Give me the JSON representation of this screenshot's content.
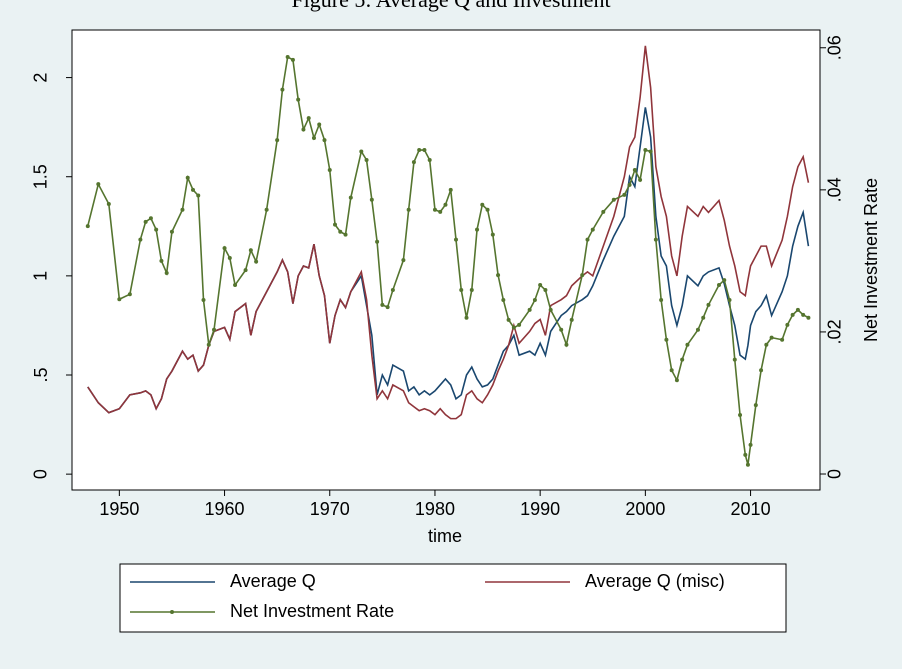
{
  "chart_data": {
    "type": "line",
    "title": "Figure 5: Average Q and Investment",
    "xlabel": "time",
    "y2label": "Net Investment Rate",
    "x": [
      1947,
      1948,
      1949,
      1950,
      1951,
      1952,
      1952.5,
      1953,
      1953.5,
      1954,
      1954.5,
      1955,
      1956,
      1956.5,
      1957,
      1957.5,
      1958,
      1958.5,
      1959,
      1960,
      1960.5,
      1961,
      1962,
      1962.5,
      1963,
      1964,
      1965,
      1965.5,
      1966,
      1966.5,
      1967,
      1967.5,
      1968,
      1968.5,
      1969,
      1969.5,
      1970,
      1970.5,
      1971,
      1971.5,
      1972,
      1973,
      1973.5,
      1974,
      1974.5,
      1975,
      1975.5,
      1976,
      1977,
      1977.5,
      1978,
      1978.5,
      1979,
      1979.5,
      1980,
      1980.5,
      1981,
      1981.5,
      1982,
      1982.5,
      1983,
      1983.5,
      1984,
      1984.5,
      1985,
      1985.5,
      1986,
      1986.5,
      1987,
      1987.5,
      1988,
      1989,
      1989.5,
      1990,
      1990.5,
      1991,
      1992,
      1992.5,
      1993,
      1994,
      1994.5,
      1995,
      1996,
      1997,
      1998,
      1998.5,
      1999,
      1999.5,
      2000,
      2000.5,
      2001,
      2001.5,
      2002,
      2002.5,
      2003,
      2003.5,
      2004,
      2005,
      2005.5,
      2006,
      2007,
      2007.5,
      2008,
      2008.5,
      2009,
      2009.5,
      2009.75,
      2010,
      2010.5,
      2011,
      2011.5,
      2012,
      2013,
      2013.5,
      2014,
      2014.5,
      2015,
      2015.5
    ],
    "series": [
      {
        "name": "Average Q",
        "color": "#1a476f",
        "values": [
          0.44,
          0.36,
          0.31,
          0.33,
          0.4,
          0.41,
          0.42,
          0.4,
          0.33,
          0.38,
          0.48,
          0.52,
          0.62,
          0.58,
          0.6,
          0.52,
          0.55,
          0.65,
          0.72,
          0.74,
          0.68,
          0.82,
          0.86,
          0.7,
          0.82,
          0.92,
          1.02,
          1.08,
          1.02,
          0.86,
          1.0,
          1.05,
          1.04,
          1.16,
          1.0,
          0.9,
          0.66,
          0.8,
          0.88,
          0.84,
          0.92,
          1.0,
          0.85,
          0.7,
          0.4,
          0.5,
          0.45,
          0.55,
          0.52,
          0.42,
          0.44,
          0.4,
          0.42,
          0.4,
          0.42,
          0.45,
          0.48,
          0.45,
          0.38,
          0.4,
          0.5,
          0.54,
          0.48,
          0.44,
          0.45,
          0.48,
          0.55,
          0.62,
          0.65,
          0.7,
          0.6,
          0.62,
          0.6,
          0.66,
          0.6,
          0.72,
          0.8,
          0.82,
          0.85,
          0.88,
          0.9,
          0.95,
          1.08,
          1.2,
          1.3,
          1.5,
          1.45,
          1.65,
          1.85,
          1.7,
          1.3,
          1.1,
          1.05,
          0.85,
          0.75,
          0.85,
          1.0,
          0.95,
          1.0,
          1.02,
          1.04,
          0.96,
          0.85,
          0.75,
          0.6,
          0.58,
          0.65,
          0.75,
          0.82,
          0.85,
          0.9,
          0.8,
          0.92,
          1.0,
          1.15,
          1.25,
          1.32,
          1.15
        ]
      },
      {
        "name": "Average Q (misc)",
        "color": "#90353b",
        "values": [
          0.44,
          0.36,
          0.31,
          0.33,
          0.4,
          0.41,
          0.42,
          0.4,
          0.33,
          0.38,
          0.48,
          0.52,
          0.62,
          0.58,
          0.6,
          0.52,
          0.55,
          0.65,
          0.72,
          0.74,
          0.68,
          0.82,
          0.86,
          0.7,
          0.82,
          0.92,
          1.02,
          1.08,
          1.02,
          0.86,
          1.0,
          1.05,
          1.04,
          1.16,
          1.0,
          0.9,
          0.66,
          0.8,
          0.88,
          0.84,
          0.92,
          1.02,
          0.88,
          0.6,
          0.38,
          0.42,
          0.38,
          0.45,
          0.42,
          0.36,
          0.34,
          0.32,
          0.33,
          0.32,
          0.3,
          0.33,
          0.3,
          0.28,
          0.28,
          0.3,
          0.4,
          0.42,
          0.38,
          0.36,
          0.4,
          0.45,
          0.52,
          0.58,
          0.65,
          0.75,
          0.66,
          0.72,
          0.76,
          0.78,
          0.7,
          0.85,
          0.88,
          0.9,
          0.95,
          1.0,
          1.02,
          1.0,
          1.15,
          1.3,
          1.5,
          1.65,
          1.7,
          1.9,
          2.16,
          1.95,
          1.55,
          1.4,
          1.3,
          1.1,
          1.0,
          1.2,
          1.35,
          1.3,
          1.35,
          1.32,
          1.38,
          1.28,
          1.15,
          1.05,
          0.92,
          0.9,
          0.98,
          1.05,
          1.1,
          1.15,
          1.15,
          1.05,
          1.18,
          1.3,
          1.45,
          1.55,
          1.6,
          1.47
        ]
      },
      {
        "name": "Net Investment Rate",
        "color": "#55752f",
        "axis": "y2",
        "markers": true,
        "values": [
          0.0349,
          0.0408,
          0.038,
          0.0246,
          0.0253,
          0.033,
          0.0355,
          0.036,
          0.0344,
          0.03,
          0.0283,
          0.0341,
          0.0372,
          0.0417,
          0.04,
          0.0392,
          0.0245,
          0.0182,
          0.0203,
          0.0318,
          0.0304,
          0.0266,
          0.0287,
          0.0315,
          0.0299,
          0.0372,
          0.047,
          0.0541,
          0.0587,
          0.0583,
          0.0527,
          0.0485,
          0.0501,
          0.0473,
          0.0492,
          0.047,
          0.0428,
          0.0351,
          0.0341,
          0.0337,
          0.0389,
          0.0454,
          0.0442,
          0.0386,
          0.0327,
          0.0238,
          0.0235,
          0.0259,
          0.0301,
          0.0372,
          0.0439,
          0.0456,
          0.0456,
          0.0442,
          0.0372,
          0.0369,
          0.0379,
          0.04,
          0.033,
          0.0259,
          0.022,
          0.0259,
          0.0344,
          0.0379,
          0.0372,
          0.0337,
          0.028,
          0.0245,
          0.0217,
          0.0206,
          0.021,
          0.0231,
          0.0245,
          0.0266,
          0.0259,
          0.0231,
          0.0203,
          0.0182,
          0.0217,
          0.028,
          0.033,
          0.0344,
          0.0369,
          0.0386,
          0.0393,
          0.0407,
          0.0428,
          0.0414,
          0.0456,
          0.0454,
          0.033,
          0.0245,
          0.0189,
          0.0146,
          0.0132,
          0.0161,
          0.0182,
          0.0203,
          0.022,
          0.0238,
          0.0266,
          0.0273,
          0.0245,
          0.0161,
          0.0083,
          0.0027,
          0.0013,
          0.0041,
          0.0097,
          0.0146,
          0.0182,
          0.0192,
          0.0189,
          0.021,
          0.0224,
          0.0231,
          0.0224,
          0.022
        ]
      }
    ],
    "xlim": [
      1945.5,
      2016.6
    ],
    "xticks": [
      1950,
      1960,
      1970,
      1980,
      1990,
      2000,
      2010
    ],
    "ylim": [
      -0.08,
      2.24
    ],
    "yticks": [
      0,
      {
        "value": 0.5,
        "label": ".5"
      },
      1,
      1.5,
      2
    ],
    "y2lim": [
      -0.00225,
      0.0625
    ],
    "y2ticks": [
      0,
      {
        "value": 0.02,
        "label": ".02"
      },
      {
        "value": 0.04,
        "label": ".04"
      },
      {
        "value": 0.06,
        "label": ".06"
      }
    ],
    "grid": false,
    "legend": "bottom"
  }
}
